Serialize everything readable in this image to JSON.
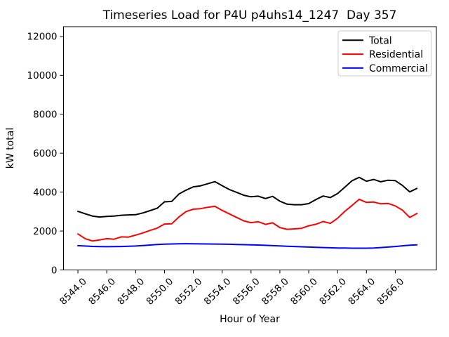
{
  "chart_data": {
    "type": "line",
    "title": "Timeseries Load for P4U p4uhs14_1247  Day 357",
    "xlabel": "Hour of Year",
    "ylabel": "kW total",
    "xlim": [
      8543.0,
      8568.85
    ],
    "ylim": [
      0,
      12500
    ],
    "grid": false,
    "legend_position": "upper right",
    "x_ticks": [
      8544,
      8546,
      8548,
      8550,
      8552,
      8554,
      8556,
      8558,
      8560,
      8562,
      8564,
      8566
    ],
    "x_tick_labels": [
      "8544.0",
      "8546.0",
      "8548.0",
      "8550.0",
      "8552.0",
      "8554.0",
      "8556.0",
      "8558.0",
      "8560.0",
      "8562.0",
      "8564.0",
      "8566.0"
    ],
    "y_ticks": [
      0,
      2000,
      4000,
      6000,
      8000,
      10000,
      12000
    ],
    "y_tick_labels": [
      "0",
      "2000",
      "4000",
      "6000",
      "8000",
      "10000",
      "12000"
    ],
    "x": [
      8544.0,
      8544.5,
      8545.0,
      8545.5,
      8546.0,
      8546.5,
      8547.0,
      8547.5,
      8548.0,
      8548.5,
      8549.0,
      8549.5,
      8550.0,
      8550.5,
      8551.0,
      8551.5,
      8552.0,
      8552.5,
      8553.0,
      8553.5,
      8554.0,
      8554.5,
      8555.0,
      8555.5,
      8556.0,
      8556.5,
      8557.0,
      8557.5,
      8558.0,
      8558.5,
      8559.0,
      8559.5,
      8560.0,
      8560.5,
      8561.0,
      8561.5,
      8562.0,
      8562.5,
      8563.0,
      8563.5,
      8564.0,
      8564.5,
      8565.0,
      8565.5,
      8566.0,
      8566.5,
      8567.0,
      8567.5
    ],
    "series": [
      {
        "name": "Total",
        "color": "#000000",
        "values": [
          3010,
          2890,
          2770,
          2720,
          2750,
          2770,
          2810,
          2830,
          2840,
          2930,
          3050,
          3170,
          3500,
          3520,
          3900,
          4100,
          4270,
          4320,
          4430,
          4540,
          4330,
          4130,
          3990,
          3840,
          3760,
          3790,
          3670,
          3780,
          3530,
          3380,
          3350,
          3350,
          3410,
          3620,
          3800,
          3720,
          3930,
          4250,
          4580,
          4760,
          4560,
          4650,
          4530,
          4610,
          4590,
          4340,
          4010,
          4190
        ]
      },
      {
        "name": "Residential",
        "color": "#ff0000",
        "values": [
          1850,
          1610,
          1490,
          1540,
          1610,
          1580,
          1700,
          1690,
          1790,
          1900,
          2030,
          2150,
          2360,
          2370,
          2720,
          3000,
          3120,
          3150,
          3220,
          3270,
          3060,
          2880,
          2700,
          2520,
          2430,
          2480,
          2340,
          2420,
          2180,
          2090,
          2110,
          2140,
          2270,
          2350,
          2490,
          2390,
          2660,
          3010,
          3310,
          3630,
          3470,
          3490,
          3400,
          3420,
          3290,
          3070,
          2700,
          2900
        ]
      },
      {
        "name": "Commercial",
        "color": "#0000ff",
        "values": [
          1250,
          1230,
          1210,
          1200,
          1195,
          1200,
          1205,
          1215,
          1230,
          1255,
          1280,
          1305,
          1325,
          1335,
          1345,
          1350,
          1345,
          1340,
          1335,
          1330,
          1325,
          1320,
          1310,
          1300,
          1290,
          1280,
          1265,
          1250,
          1235,
          1220,
          1205,
          1190,
          1175,
          1160,
          1150,
          1140,
          1130,
          1125,
          1120,
          1118,
          1120,
          1130,
          1150,
          1175,
          1205,
          1240,
          1270,
          1290
        ]
      }
    ],
    "legend": {
      "entries": [
        "Total",
        "Residential",
        "Commercial"
      ],
      "border_color": "#cccccc"
    }
  }
}
